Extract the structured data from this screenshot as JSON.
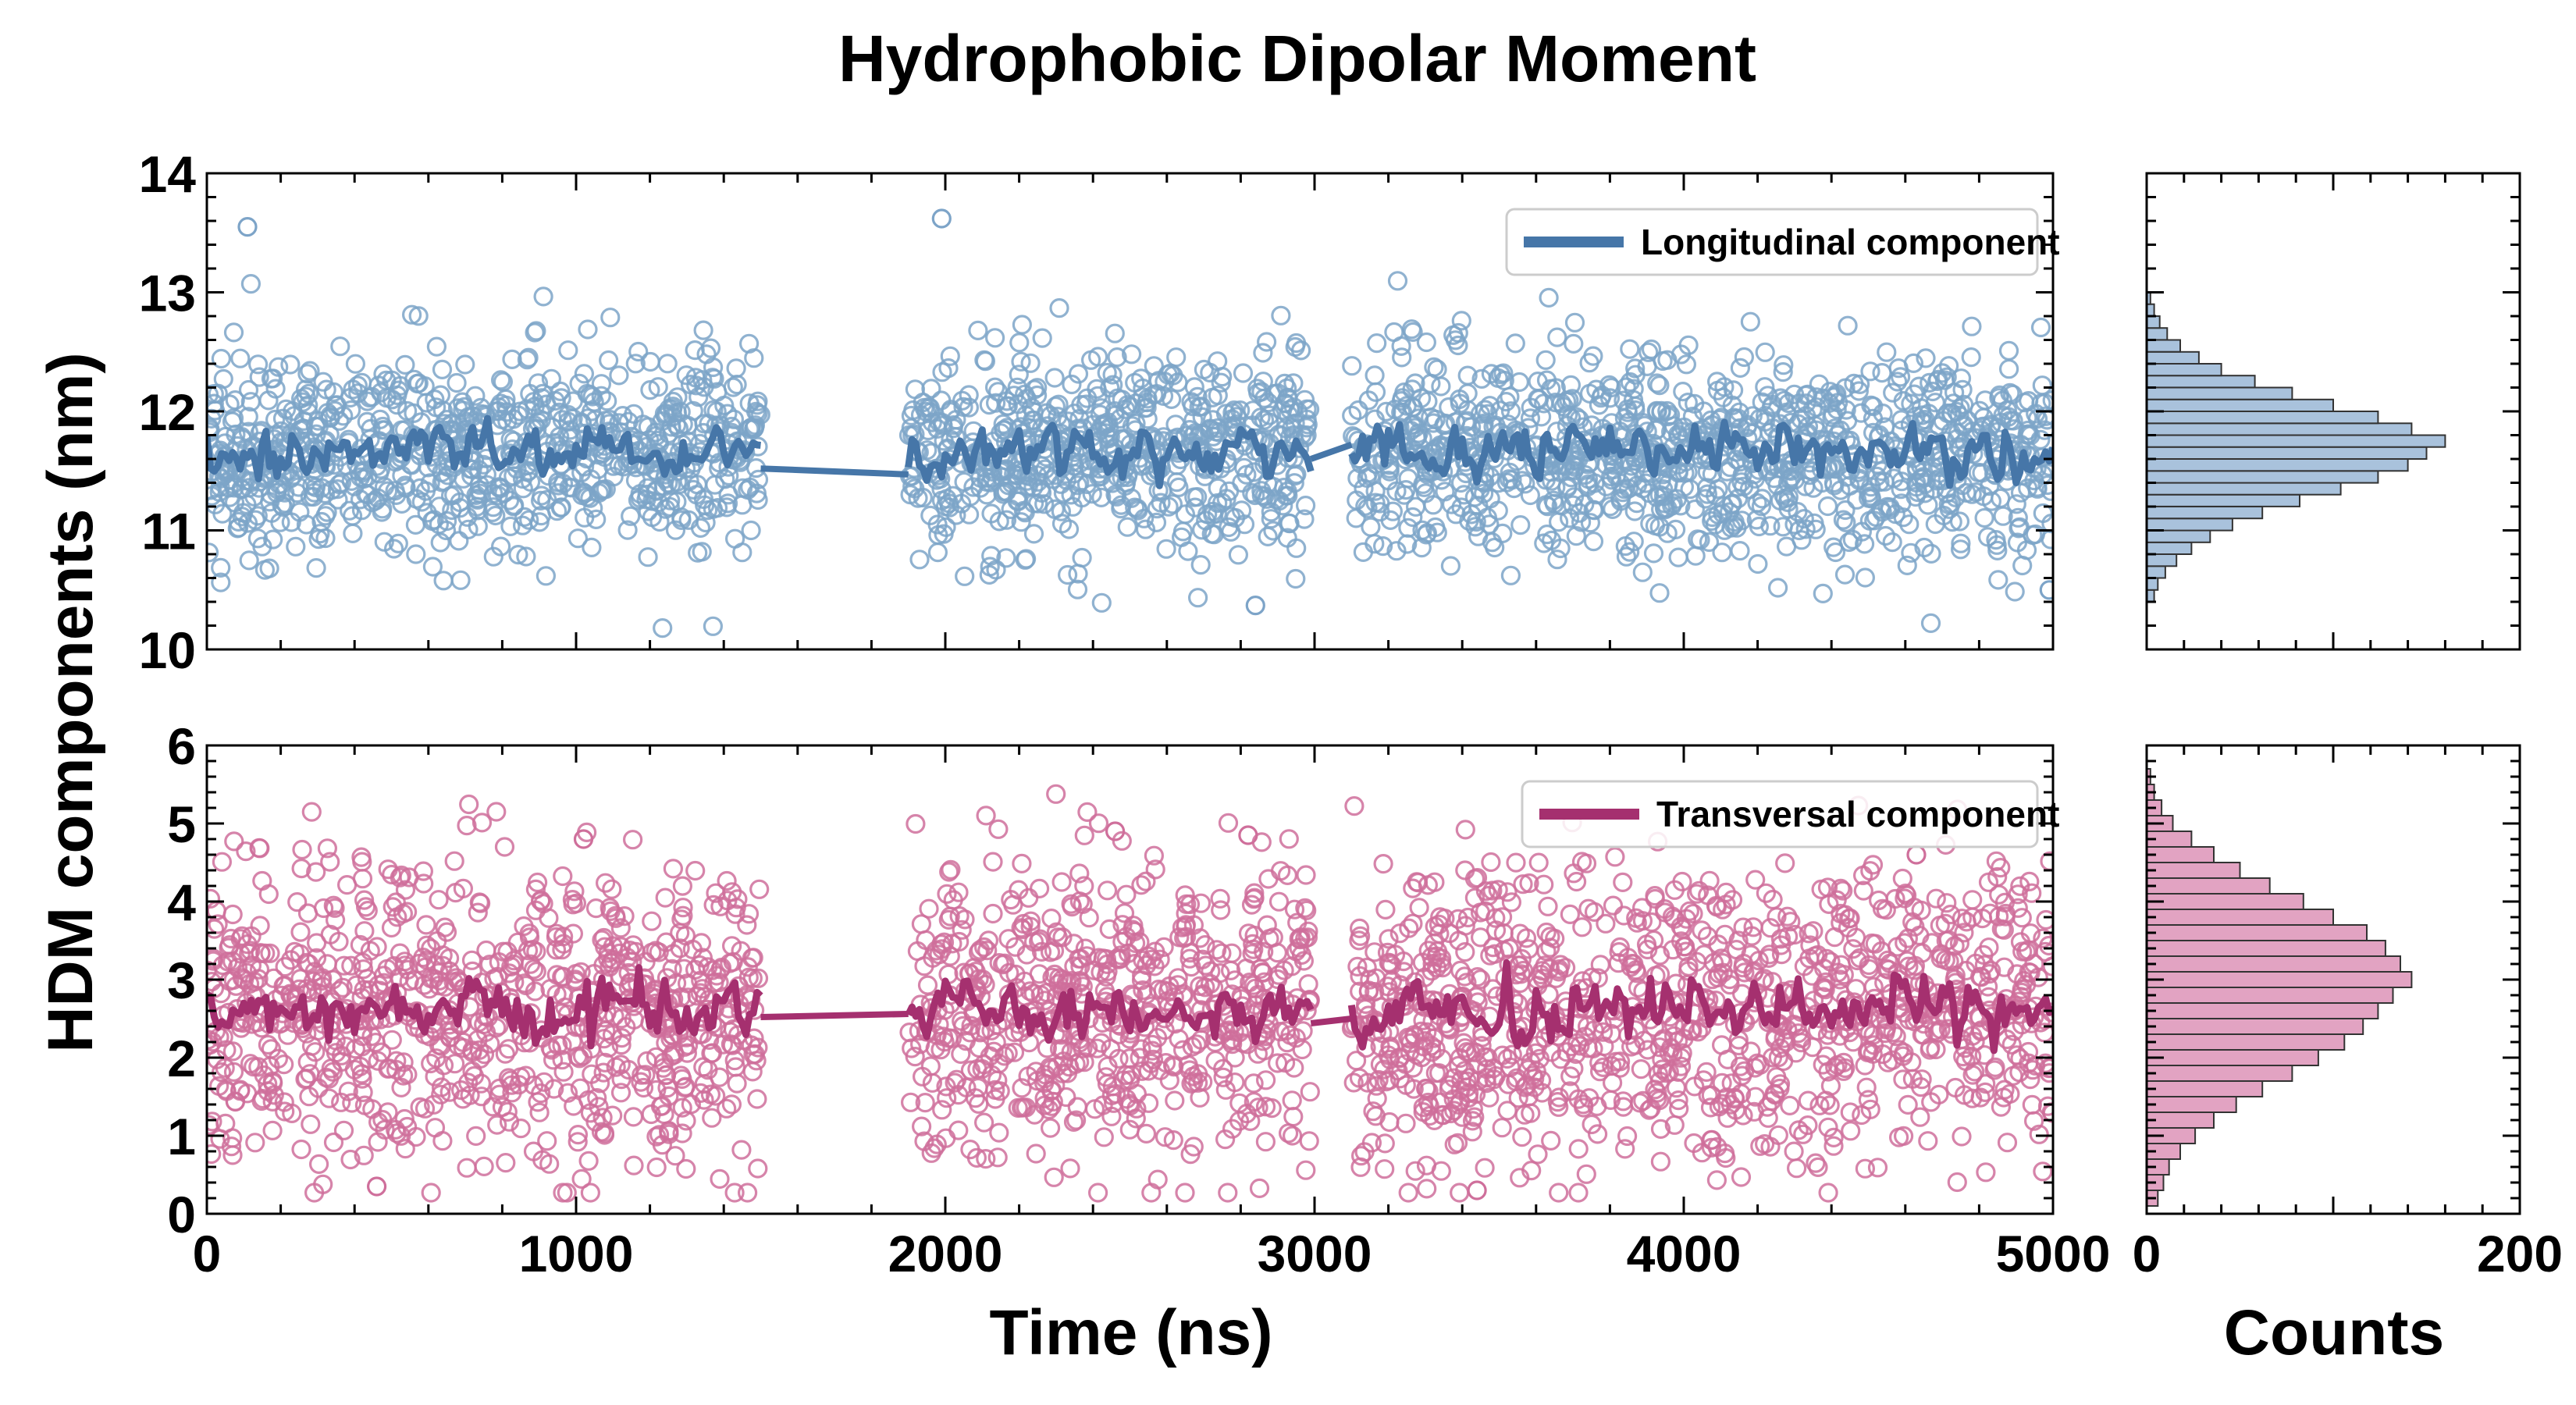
{
  "chart_data": {
    "type": "scatter",
    "title": "Hydrophobic Dipolar Moment",
    "ylabel": "HDM components (nm)",
    "xlabel": "Time (ns)",
    "hist_xlabel": "Counts",
    "panels": [
      {
        "id": "longitudinal",
        "legend": "Longitudinal component",
        "legend_position": "top-right",
        "color": "#4676a8",
        "marker_color": "#7da4c8",
        "hist_fill": "#a9c2dc",
        "xlim": [
          0,
          5000
        ],
        "ylim": [
          10,
          14
        ],
        "xticks": [
          0,
          1000,
          2000,
          3000,
          4000,
          5000
        ],
        "yticks": [
          10,
          11,
          12,
          13,
          14
        ],
        "xtick_labels_shown": false,
        "segments": [
          [
            0,
            1500
          ],
          [
            1900,
            2990
          ],
          [
            3100,
            5000
          ]
        ],
        "mean": 11.65,
        "spread": 0.42,
        "line_jitter": 0.17,
        "outliers": [
          {
            "x": 110,
            "y": 13.55
          },
          {
            "x": 1990,
            "y": 13.62
          },
          {
            "x": 2840,
            "y": 10.37
          },
          {
            "x": 4990,
            "y": 10.5
          }
        ],
        "gap_line": [
          [
            1500,
            11.52
          ],
          [
            1900,
            11.47
          ]
        ],
        "gap_line_2": [
          [
            2990,
            11.6
          ],
          [
            3100,
            11.72
          ]
        ],
        "hist": {
          "bin_start": 10.4,
          "bin_width": 0.1,
          "counts": [
            4,
            6,
            10,
            16,
            24,
            34,
            46,
            62,
            82,
            104,
            124,
            140,
            150,
            160,
            142,
            124,
            100,
            78,
            58,
            40,
            28,
            18,
            11,
            7,
            4,
            2
          ],
          "xlim": [
            0,
            200
          ],
          "xticks": [
            0,
            200
          ],
          "xtick_labels_shown": false
        }
      },
      {
        "id": "transversal",
        "legend": "Transversal component",
        "legend_position": "top-right",
        "color": "#a5306f",
        "marker_color": "#cf6f9b",
        "hist_fill": "#e2a3c2",
        "xlim": [
          0,
          5000
        ],
        "ylim": [
          0,
          6
        ],
        "xticks": [
          0,
          1000,
          2000,
          3000,
          4000,
          5000
        ],
        "yticks": [
          0,
          1,
          2,
          3,
          4,
          5,
          6
        ],
        "xtick_labels_shown": true,
        "segments": [
          [
            0,
            1500
          ],
          [
            1900,
            2990
          ],
          [
            3100,
            5000
          ]
        ],
        "mean": 2.6,
        "spread": 0.95,
        "line_jitter": 0.32,
        "outliers": [
          {
            "x": 1020,
            "y": 4.8
          },
          {
            "x": 2820,
            "y": 4.85
          },
          {
            "x": 2460,
            "y": 4.9
          },
          {
            "x": 460,
            "y": 0.35
          },
          {
            "x": 3440,
            "y": 0.3
          },
          {
            "x": 4630,
            "y": 4.6
          }
        ],
        "gap_line": [
          [
            1500,
            2.52
          ],
          [
            1900,
            2.56
          ]
        ],
        "gap_line_2": [
          [
            2990,
            2.44
          ],
          [
            3100,
            2.5
          ]
        ],
        "hist": {
          "bin_start": 0.1,
          "bin_width": 0.2,
          "counts": [
            6,
            9,
            12,
            18,
            26,
            36,
            48,
            62,
            78,
            92,
            106,
            116,
            124,
            132,
            142,
            136,
            128,
            118,
            100,
            84,
            66,
            50,
            36,
            24,
            14,
            8,
            4,
            2
          ],
          "xlim": [
            0,
            200
          ],
          "xticks": [
            0,
            200
          ],
          "xtick_labels_shown": true
        }
      }
    ]
  }
}
